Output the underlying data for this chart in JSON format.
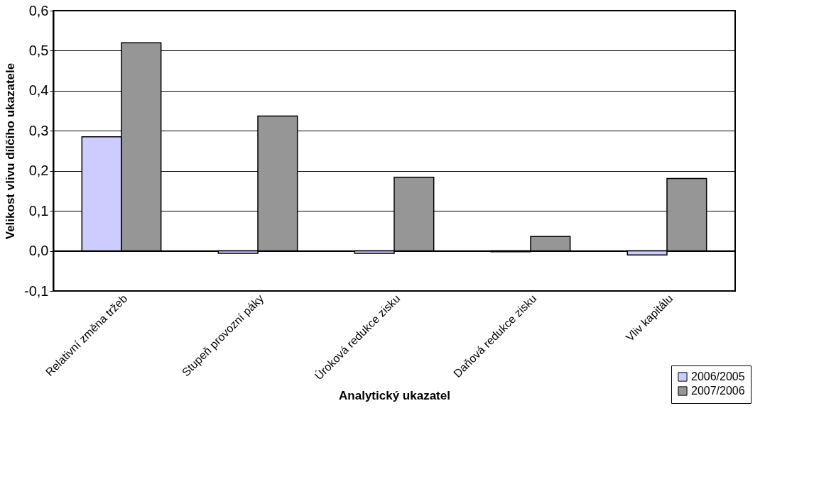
{
  "chart_data": {
    "type": "bar",
    "xlabel": "Analytický ukazatel",
    "ylabel": "Velikost vlivu dílčího ukazatele",
    "categories": [
      "Relativní změna tržeb",
      "Stupeň provozní páky",
      "Úroková redukce zisku",
      "Daňová redukce zisku",
      "Vliv kapitálu"
    ],
    "series": [
      {
        "name": "2006/2005",
        "color": "#ccccff",
        "values": [
          0.285,
          -0.006,
          -0.006,
          -0.002,
          -0.01
        ]
      },
      {
        "name": "2007/2006",
        "color": "#969696",
        "values": [
          0.52,
          0.337,
          0.184,
          0.036,
          0.181
        ]
      }
    ],
    "ylim": [
      -0.1,
      0.6
    ],
    "yticks": [
      {
        "value": -0.1,
        "label": "-0,1"
      },
      {
        "value": 0,
        "label": "0,0"
      },
      {
        "value": 0.1,
        "label": "0,1"
      },
      {
        "value": 0.2,
        "label": "0,2"
      },
      {
        "value": 0.3,
        "label": "0,3"
      },
      {
        "value": 0.4,
        "label": "0,4"
      },
      {
        "value": 0.5,
        "label": "0,5"
      },
      {
        "value": 0.6,
        "label": "0,6"
      }
    ],
    "grid": "y",
    "legend": "bottom right"
  }
}
